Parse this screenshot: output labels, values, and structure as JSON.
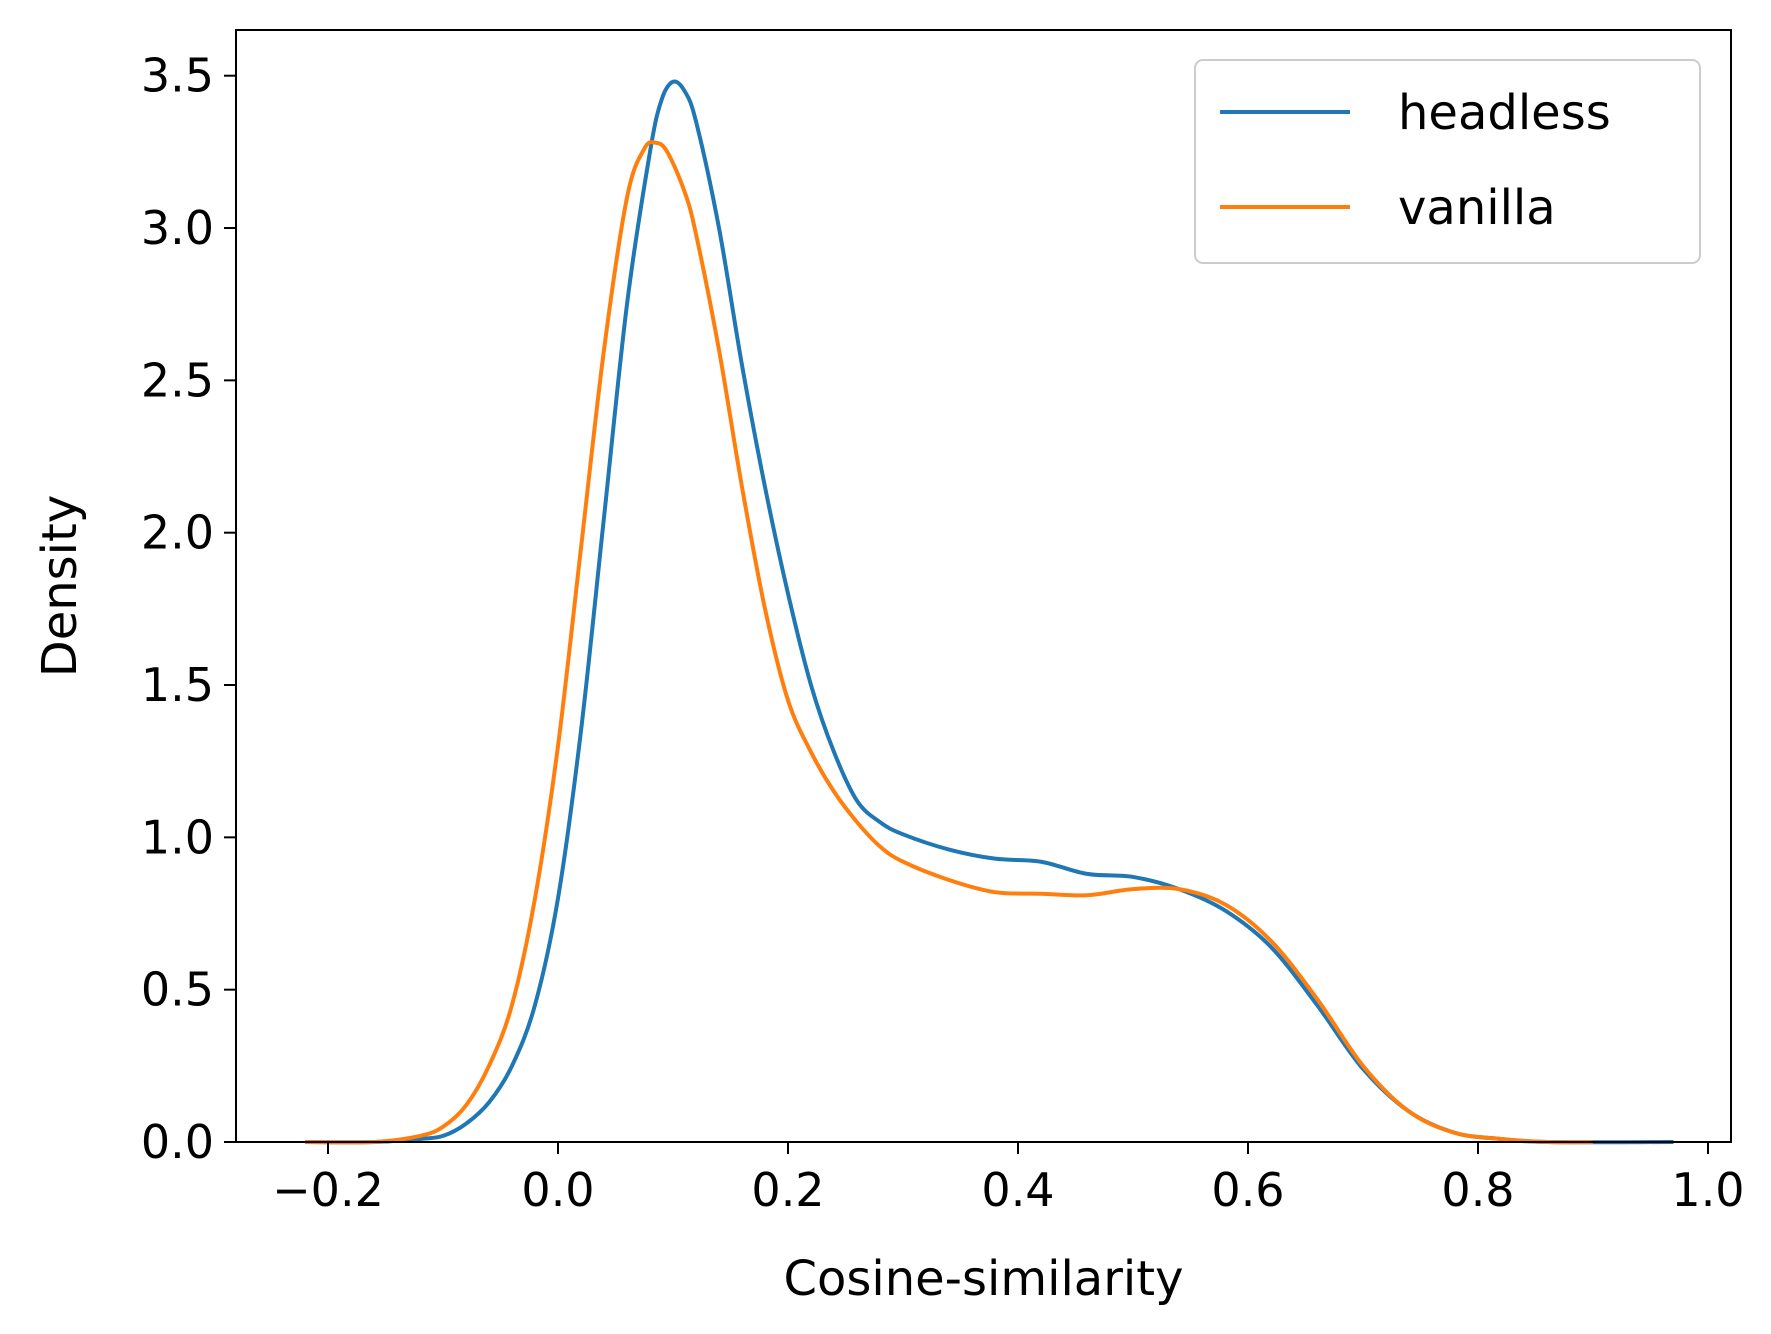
{
  "chart_data": {
    "type": "line",
    "title": "",
    "xlabel": "Cosine-similarity",
    "ylabel": "Density",
    "xlim": [
      -0.28,
      1.02
    ],
    "ylim": [
      0.0,
      3.65
    ],
    "xticks": [
      -0.2,
      0.0,
      0.2,
      0.4,
      0.6,
      0.8,
      1.0
    ],
    "xtick_labels": [
      "−0.2",
      "0.0",
      "0.2",
      "0.4",
      "0.6",
      "0.8",
      "1.0"
    ],
    "yticks": [
      0.0,
      0.5,
      1.0,
      1.5,
      2.0,
      2.5,
      3.0,
      3.5
    ],
    "ytick_labels": [
      "0.0",
      "0.5",
      "1.0",
      "1.5",
      "2.0",
      "2.5",
      "3.0",
      "3.5"
    ],
    "grid": false,
    "legend_position": "top-right",
    "series": [
      {
        "name": "headless",
        "color": "#1f77b4",
        "points": [
          [
            -0.22,
            0.0
          ],
          [
            -0.16,
            0.0
          ],
          [
            -0.12,
            0.01
          ],
          [
            -0.1,
            0.02
          ],
          [
            -0.08,
            0.06
          ],
          [
            -0.06,
            0.13
          ],
          [
            -0.04,
            0.25
          ],
          [
            -0.02,
            0.45
          ],
          [
            0.0,
            0.8
          ],
          [
            0.02,
            1.35
          ],
          [
            0.04,
            2.05
          ],
          [
            0.06,
            2.75
          ],
          [
            0.08,
            3.25
          ],
          [
            0.09,
            3.42
          ],
          [
            0.1,
            3.48
          ],
          [
            0.11,
            3.45
          ],
          [
            0.12,
            3.35
          ],
          [
            0.14,
            3.0
          ],
          [
            0.16,
            2.55
          ],
          [
            0.18,
            2.15
          ],
          [
            0.2,
            1.8
          ],
          [
            0.22,
            1.5
          ],
          [
            0.24,
            1.28
          ],
          [
            0.26,
            1.12
          ],
          [
            0.28,
            1.05
          ],
          [
            0.3,
            1.01
          ],
          [
            0.34,
            0.96
          ],
          [
            0.38,
            0.93
          ],
          [
            0.42,
            0.92
          ],
          [
            0.46,
            0.88
          ],
          [
            0.5,
            0.87
          ],
          [
            0.54,
            0.83
          ],
          [
            0.58,
            0.76
          ],
          [
            0.62,
            0.64
          ],
          [
            0.66,
            0.45
          ],
          [
            0.7,
            0.24
          ],
          [
            0.74,
            0.1
          ],
          [
            0.78,
            0.03
          ],
          [
            0.82,
            0.01
          ],
          [
            0.86,
            0.0
          ],
          [
            0.97,
            0.0
          ]
        ]
      },
      {
        "name": "vanilla",
        "color": "#ff7f0e",
        "points": [
          [
            -0.22,
            0.0
          ],
          [
            -0.16,
            0.0
          ],
          [
            -0.12,
            0.02
          ],
          [
            -0.1,
            0.05
          ],
          [
            -0.08,
            0.12
          ],
          [
            -0.06,
            0.25
          ],
          [
            -0.04,
            0.45
          ],
          [
            -0.02,
            0.8
          ],
          [
            0.0,
            1.3
          ],
          [
            0.02,
            1.95
          ],
          [
            0.04,
            2.6
          ],
          [
            0.06,
            3.1
          ],
          [
            0.075,
            3.26
          ],
          [
            0.085,
            3.28
          ],
          [
            0.095,
            3.25
          ],
          [
            0.11,
            3.12
          ],
          [
            0.12,
            2.98
          ],
          [
            0.14,
            2.6
          ],
          [
            0.16,
            2.15
          ],
          [
            0.18,
            1.75
          ],
          [
            0.2,
            1.45
          ],
          [
            0.22,
            1.28
          ],
          [
            0.24,
            1.15
          ],
          [
            0.26,
            1.05
          ],
          [
            0.28,
            0.97
          ],
          [
            0.3,
            0.92
          ],
          [
            0.34,
            0.86
          ],
          [
            0.38,
            0.82
          ],
          [
            0.42,
            0.815
          ],
          [
            0.46,
            0.81
          ],
          [
            0.5,
            0.83
          ],
          [
            0.54,
            0.83
          ],
          [
            0.58,
            0.78
          ],
          [
            0.62,
            0.66
          ],
          [
            0.66,
            0.47
          ],
          [
            0.7,
            0.25
          ],
          [
            0.74,
            0.1
          ],
          [
            0.78,
            0.03
          ],
          [
            0.82,
            0.01
          ],
          [
            0.86,
            0.0
          ],
          [
            0.9,
            0.0
          ]
        ]
      }
    ]
  }
}
